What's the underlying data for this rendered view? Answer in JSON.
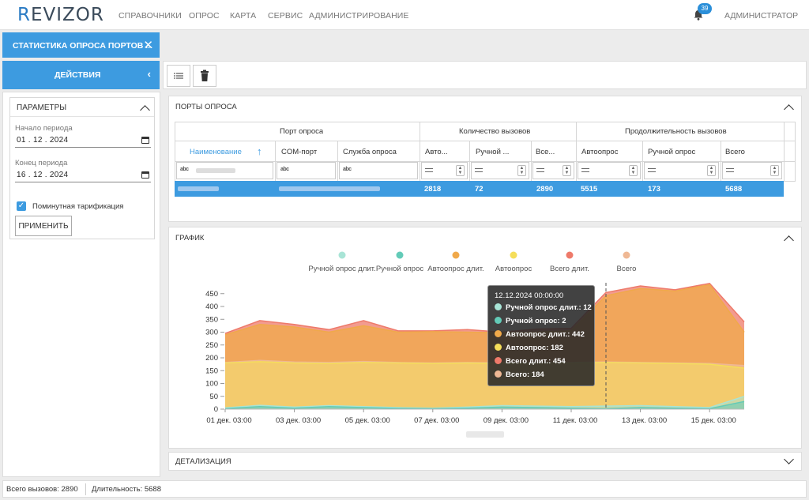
{
  "app": {
    "logo_prefix": "R",
    "logo_rest": "EVIZOR",
    "nav": [
      "СПРАВОЧНИКИ",
      "ОПРОС",
      "КАРТА",
      "СЕРВИС",
      "АДМИНИСТРИРОВАНИЕ"
    ],
    "notifications_count": "39",
    "user": "АДМИНИСТРАТОР"
  },
  "tab": {
    "label": "СТАТИСТИКА ОПРОСА ПОРТОВ ...",
    "close_icon": "close-icon"
  },
  "actions": {
    "label": "ДЕЙСТВИЯ"
  },
  "params": {
    "title": "ПАРАМЕТРЫ",
    "period_start_label": "Начало периода",
    "period_start": "01 . 12 . 2024",
    "period_end_label": "Конец периода",
    "period_end": "16 . 12 . 2024",
    "per_minute_label": "Поминутная тарификация",
    "per_minute_checked": true,
    "apply_label": "ПРИМЕНИТЬ"
  },
  "ports": {
    "title": "ПОРТЫ ОПРОСА",
    "groups": [
      "Порт опроса",
      "Количество вызовов",
      "Продолжительность вызовов"
    ],
    "columns": [
      "Наименование",
      "COM-порт",
      "Служба опроса",
      "Авто...",
      "Ручной ...",
      "Все...",
      "Автоопрос",
      "Ручной опрос",
      "Всего"
    ],
    "row": [
      "",
      "",
      "",
      "2818",
      "72",
      "2890",
      "5515",
      "173",
      "5688"
    ]
  },
  "chart_panel": {
    "title": "ГРАФИК"
  },
  "detail_panel": {
    "title": "ДЕТАЛИЗАЦИЯ"
  },
  "status": {
    "total_calls": "Всего вызовов: 2890",
    "duration": "Длительность: 5688"
  },
  "tooltip": {
    "title": "12.12.2024 00:00:00",
    "rows": [
      {
        "text": "Ручной опрос длит.: 12",
        "color": "#a8e4d6"
      },
      {
        "text": "Ручной опрос: 2",
        "color": "#63cbb8"
      },
      {
        "text": "Автоопрос длит.: 442",
        "color": "#f0a94a"
      },
      {
        "text": "Автоопрос: 182",
        "color": "#f5de5a"
      },
      {
        "text": "Всего длит.: 454",
        "color": "#ee7a6a"
      },
      {
        "text": "Всего: 184",
        "color": "#efb894"
      }
    ]
  },
  "chart_data": {
    "type": "area",
    "x": [
      "01 дек. 03:00",
      "02 дек. 03:00",
      "03 дек. 03:00",
      "04 дек. 03:00",
      "05 дек. 03:00",
      "06 дек. 03:00",
      "07 дек. 03:00",
      "08 дек. 03:00",
      "09 дек. 03:00",
      "10 дек. 03:00",
      "11 дек. 03:00",
      "12 дек. 03:00",
      "13 дек. 03:00",
      "14 дек. 03:00",
      "15 дек. 03:00",
      "16 дек. 03:00"
    ],
    "xticks": [
      "01 дек. 03:00",
      "03 дек. 03:00",
      "05 дек. 03:00",
      "07 дек. 03:00",
      "09 дек. 03:00",
      "11 дек. 03:00",
      "13 дек. 03:00",
      "15 дек. 03:00"
    ],
    "ylim": [
      0,
      480
    ],
    "yticks": [
      0,
      50,
      100,
      150,
      200,
      250,
      300,
      350,
      400,
      450
    ],
    "series": [
      {
        "name": "Ручной опрос длит.",
        "color": "#a8e4d6",
        "values": [
          5,
          15,
          8,
          14,
          10,
          6,
          4,
          8,
          14,
          12,
          10,
          12,
          14,
          10,
          6,
          50
        ]
      },
      {
        "name": "Ручной опрос",
        "color": "#63cbb8",
        "values": [
          2,
          10,
          4,
          10,
          6,
          3,
          2,
          4,
          8,
          6,
          4,
          2,
          6,
          4,
          2,
          30
        ]
      },
      {
        "name": "Автоопрос длит.",
        "color": "#f0a94a",
        "values": [
          290,
          330,
          320,
          300,
          325,
          300,
          302,
          300,
          298,
          300,
          305,
          442,
          470,
          460,
          485,
          300
        ]
      },
      {
        "name": "Автоопрос",
        "color": "#f5de5a",
        "values": [
          180,
          185,
          180,
          178,
          182,
          180,
          178,
          180,
          178,
          180,
          180,
          182,
          180,
          178,
          175,
          160
        ]
      },
      {
        "name": "Всего длит.",
        "color": "#ee7a6a",
        "values": [
          295,
          345,
          330,
          310,
          345,
          305,
          305,
          310,
          300,
          312,
          315,
          454,
          480,
          465,
          490,
          340
        ]
      },
      {
        "name": "Всего",
        "color": "#efb894",
        "values": [
          182,
          190,
          184,
          182,
          186,
          182,
          180,
          182,
          180,
          182,
          182,
          184,
          182,
          180,
          178,
          170
        ]
      }
    ]
  }
}
